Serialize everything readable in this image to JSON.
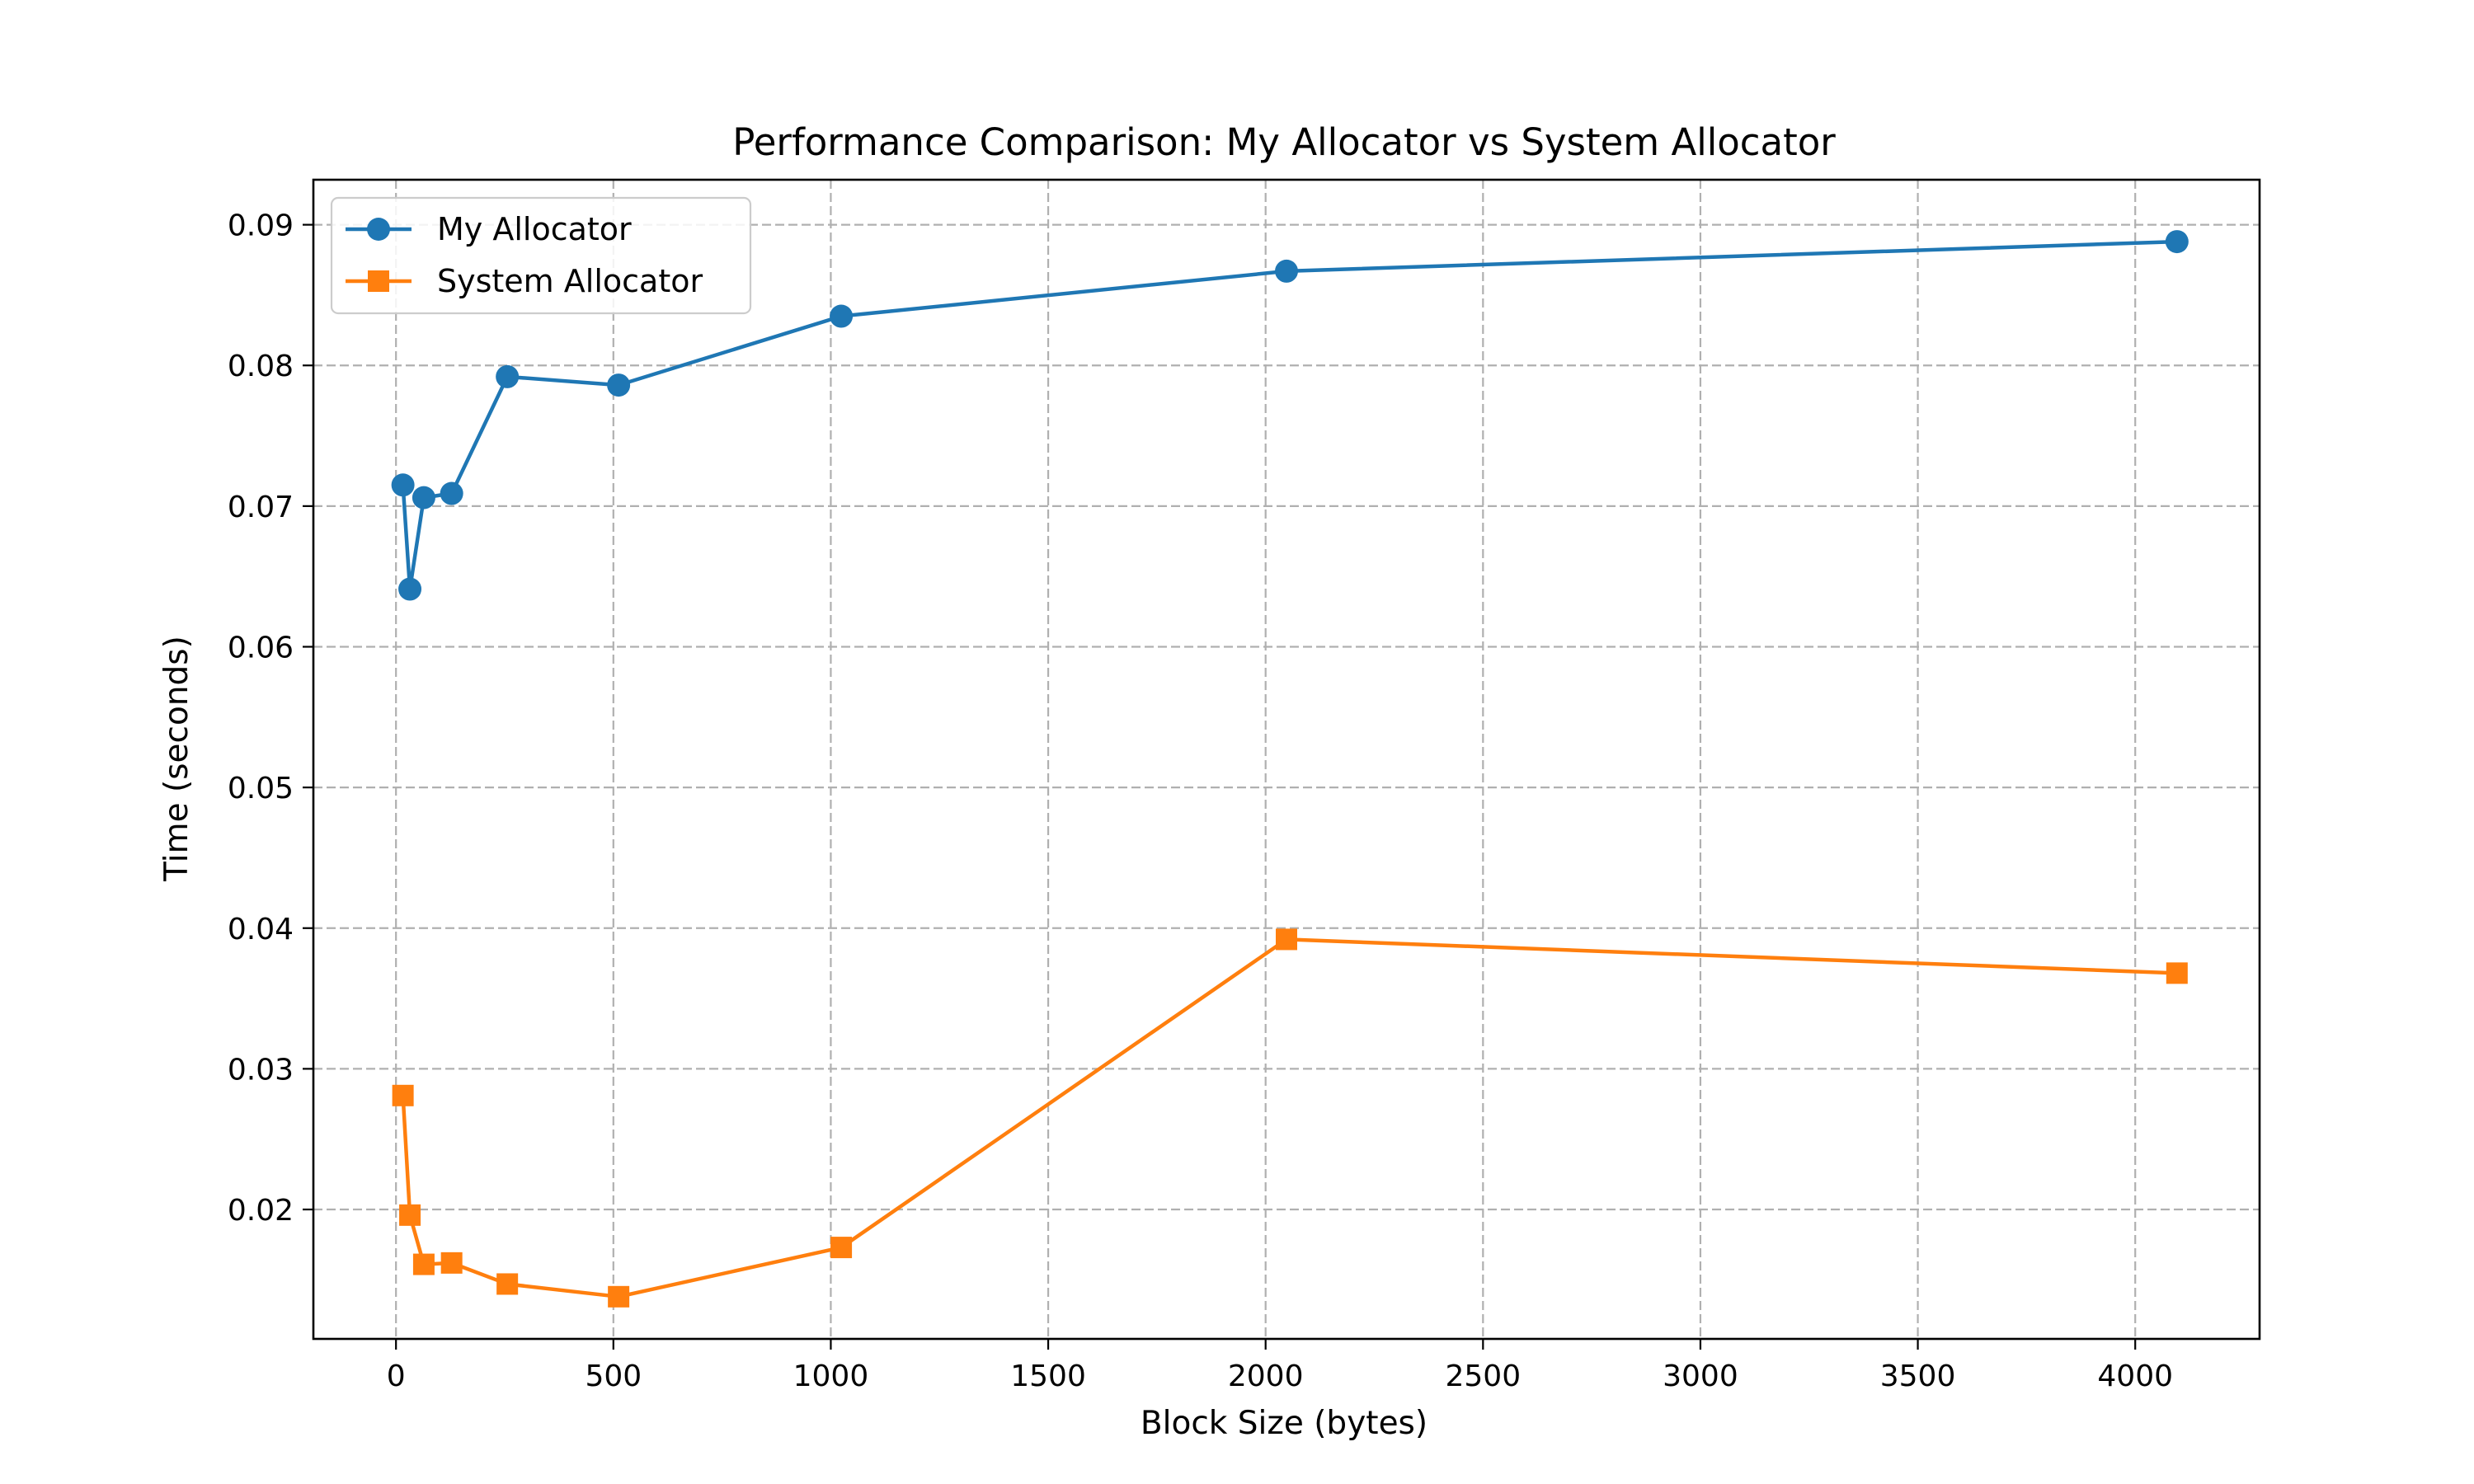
{
  "chart_data": {
    "type": "line",
    "title": "Performance Comparison: My Allocator vs System Allocator",
    "xlabel": "Block Size (bytes)",
    "ylabel": "Time (seconds)",
    "xlim": [
      -190,
      4286
    ],
    "ylim": [
      0.0108,
      0.0932
    ],
    "xticks": [
      0,
      500,
      1000,
      1500,
      2000,
      2500,
      3000,
      3500,
      4000
    ],
    "yticks": [
      0.02,
      0.03,
      0.04,
      0.05,
      0.06,
      0.07,
      0.08,
      0.09
    ],
    "xtick_labels": [
      "0",
      "500",
      "1000",
      "1500",
      "2000",
      "2500",
      "3000",
      "3500",
      "4000"
    ],
    "ytick_labels": [
      "0.02",
      "0.03",
      "0.04",
      "0.05",
      "0.06",
      "0.07",
      "0.08",
      "0.09"
    ],
    "grid": true,
    "legend_position": "upper-left",
    "x": [
      16,
      32,
      64,
      128,
      256,
      512,
      1024,
      2048,
      4096
    ],
    "series": [
      {
        "name": "My Allocator",
        "color": "#1f77b4",
        "marker": "circle",
        "values": [
          0.0715,
          0.0641,
          0.0706,
          0.0709,
          0.0792,
          0.0786,
          0.0835,
          0.0867,
          0.0888
        ]
      },
      {
        "name": "System Allocator",
        "color": "#ff7f0e",
        "marker": "square",
        "values": [
          0.0281,
          0.0196,
          0.0161,
          0.0162,
          0.0147,
          0.0138,
          0.0173,
          0.0392,
          0.0368
        ]
      }
    ]
  }
}
